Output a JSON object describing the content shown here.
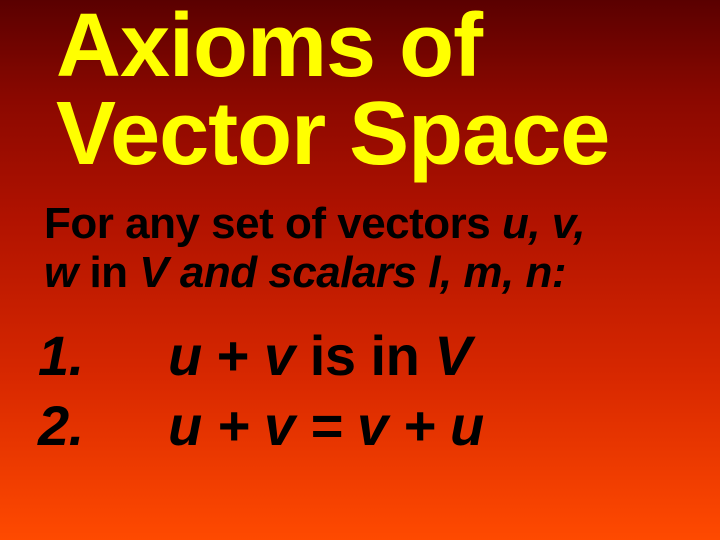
{
  "colors": {
    "title": "#ffff00",
    "body": "#000000",
    "bg_top": "#5a0000",
    "bg_mid": "#b01200",
    "bg_bottom": "#ff4a00"
  },
  "typography": {
    "title_fontsize": 90,
    "intro_fontsize": 44,
    "axiom_fontsize": 56,
    "font_family": "Arial",
    "font_weight": "bold"
  },
  "title": {
    "line1": "Axioms of",
    "line2": "Vector Space"
  },
  "intro": {
    "part1": "For any set of vectors ",
    "uvw_a": "u, v,",
    "part2_a": "w",
    "part2_b": " in  ",
    "part2_c": "V and scalars l, m, n:"
  },
  "axioms": [
    {
      "num": "1.",
      "lhs_u": "u",
      "plus": " + ",
      "lhs_v": "v",
      "mid": "  is in ",
      "rhs": "V"
    },
    {
      "num": "2.",
      "expr": "u + v = v + u"
    }
  ]
}
